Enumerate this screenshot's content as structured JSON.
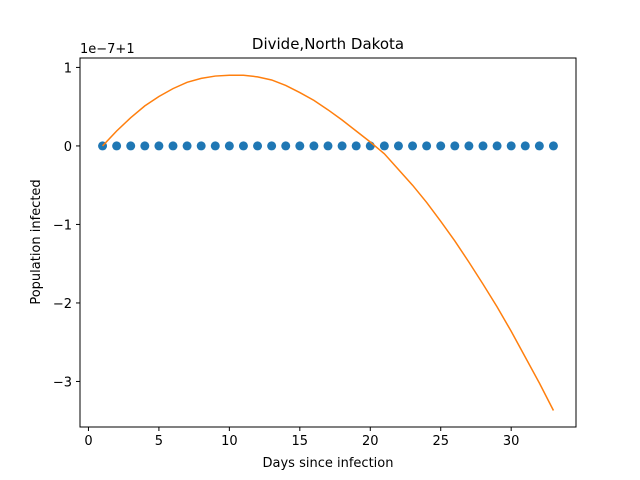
{
  "chart_data": {
    "type": "scatter",
    "title": "Divide,North Dakota",
    "xlabel": "Days since infection",
    "ylabel": "Population infected",
    "offset_text": "1e−7+1",
    "xlim": [
      -0.6,
      34.6
    ],
    "ylim": [
      -3.58,
      1.12
    ],
    "x_ticks": [
      0,
      5,
      10,
      15,
      20,
      25,
      30
    ],
    "x_tick_labels": [
      "0",
      "5",
      "10",
      "15",
      "20",
      "25",
      "30"
    ],
    "y_ticks": [
      1,
      0,
      -1,
      -2,
      -3
    ],
    "y_tick_labels": [
      "1",
      "0",
      "−1",
      "−2",
      "−3"
    ],
    "grid": false,
    "series": [
      {
        "kind": "scatter",
        "color": "#1f77b4",
        "x": [
          1,
          2,
          3,
          4,
          5,
          6,
          7,
          8,
          9,
          10,
          11,
          12,
          13,
          14,
          15,
          16,
          17,
          18,
          19,
          20,
          21,
          22,
          23,
          24,
          25,
          26,
          27,
          28,
          29,
          30,
          31,
          32,
          33
        ],
        "y": [
          0,
          0,
          0,
          0,
          0,
          0,
          0,
          0,
          0,
          0,
          0,
          0,
          0,
          0,
          0,
          0,
          0,
          0,
          0,
          0,
          0,
          0,
          0,
          0,
          0,
          0,
          0,
          0,
          0,
          0,
          0,
          0,
          0
        ]
      },
      {
        "kind": "line",
        "color": "#ff7f0e",
        "x": [
          1,
          2,
          3,
          4,
          5,
          6,
          7,
          8,
          9,
          10,
          11,
          12,
          13,
          14,
          15,
          16,
          17,
          18,
          19,
          20,
          21,
          22,
          23,
          24,
          25,
          26,
          27,
          28,
          29,
          30,
          31,
          32,
          33
        ],
        "y": [
          0.0,
          0.19,
          0.36,
          0.51,
          0.63,
          0.73,
          0.81,
          0.86,
          0.89,
          0.9,
          0.9,
          0.88,
          0.84,
          0.77,
          0.68,
          0.58,
          0.46,
          0.33,
          0.19,
          0.05,
          -0.1,
          -0.3,
          -0.5,
          -0.72,
          -0.96,
          -1.21,
          -1.48,
          -1.76,
          -2.05,
          -2.36,
          -2.69,
          -3.02,
          -3.37
        ]
      }
    ]
  }
}
